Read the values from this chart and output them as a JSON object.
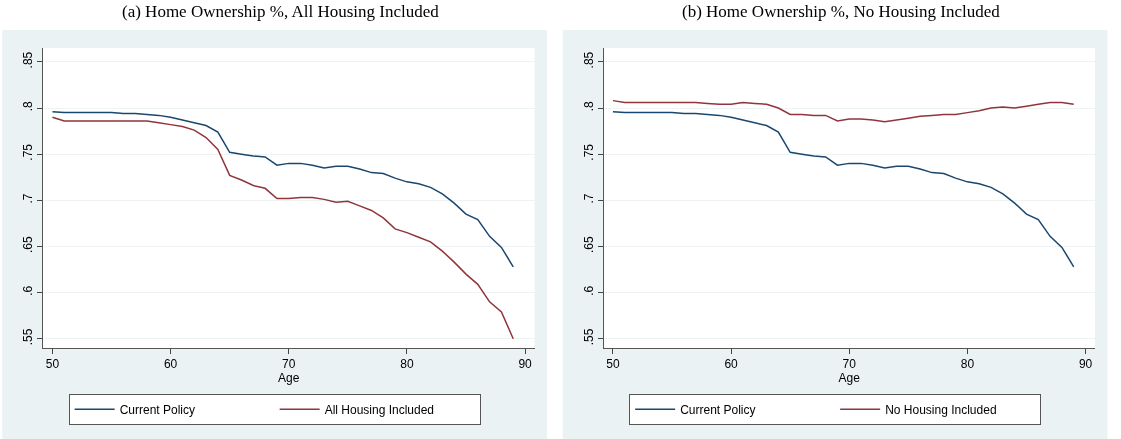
{
  "chart_data": [
    {
      "type": "line",
      "title": "(a) Home Ownership %, All Housing Included",
      "xlabel": "Age",
      "x": [
        50,
        51,
        52,
        53,
        54,
        55,
        56,
        57,
        58,
        59,
        60,
        61,
        62,
        63,
        64,
        65,
        66,
        67,
        68,
        69,
        70,
        71,
        72,
        73,
        74,
        75,
        76,
        77,
        78,
        79,
        80,
        81,
        82,
        83,
        84,
        85,
        86,
        87,
        88,
        89
      ],
      "series": [
        {
          "name": "Current Policy",
          "color": "#1a476f",
          "values": [
            0.796,
            0.795,
            0.795,
            0.795,
            0.795,
            0.795,
            0.794,
            0.794,
            0.793,
            0.792,
            0.79,
            0.787,
            0.784,
            0.781,
            0.774,
            0.752,
            0.75,
            0.748,
            0.747,
            0.738,
            0.74,
            0.74,
            0.738,
            0.735,
            0.737,
            0.737,
            0.734,
            0.73,
            0.729,
            0.724,
            0.72,
            0.718,
            0.714,
            0.707,
            0.697,
            0.685,
            0.679,
            0.661,
            0.649,
            0.628
          ]
        },
        {
          "name": "All Housing Included",
          "color": "#90353b",
          "values": [
            0.79,
            0.786,
            0.786,
            0.786,
            0.786,
            0.786,
            0.786,
            0.786,
            0.786,
            0.784,
            0.782,
            0.78,
            0.776,
            0.768,
            0.755,
            0.727,
            0.722,
            0.716,
            0.713,
            0.702,
            0.702,
            0.703,
            0.703,
            0.701,
            0.698,
            0.699,
            0.694,
            0.689,
            0.681,
            0.669,
            0.665,
            0.66,
            0.655,
            0.645,
            0.633,
            0.62,
            0.609,
            0.59,
            0.579,
            0.55
          ]
        }
      ],
      "xlim": [
        49.2,
        90.8
      ],
      "xticks": [
        50,
        60,
        70,
        80,
        90
      ],
      "ylim": [
        0.54,
        0.865
      ],
      "yticks": [
        {
          "value": 0.55,
          "label": ".55"
        },
        {
          "value": 0.6,
          "label": ".6"
        },
        {
          "value": 0.65,
          "label": ".65"
        },
        {
          "value": 0.7,
          "label": ".7"
        },
        {
          "value": 0.75,
          "label": ".75"
        },
        {
          "value": 0.8,
          "label": ".8"
        },
        {
          "value": 0.85,
          "label": ".85"
        }
      ],
      "grid": "y",
      "legend": "bottom",
      "marker": "none",
      "line_style": "solid"
    },
    {
      "type": "line",
      "title": "(b) Home Ownership %, No Housing Included",
      "xlabel": "Age",
      "x": [
        50,
        51,
        52,
        53,
        54,
        55,
        56,
        57,
        58,
        59,
        60,
        61,
        62,
        63,
        64,
        65,
        66,
        67,
        68,
        69,
        70,
        71,
        72,
        73,
        74,
        75,
        76,
        77,
        78,
        79,
        80,
        81,
        82,
        83,
        84,
        85,
        86,
        87,
        88,
        89
      ],
      "series": [
        {
          "name": "Current Policy",
          "color": "#1a476f",
          "values": [
            0.796,
            0.795,
            0.795,
            0.795,
            0.795,
            0.795,
            0.794,
            0.794,
            0.793,
            0.792,
            0.79,
            0.787,
            0.784,
            0.781,
            0.774,
            0.752,
            0.75,
            0.748,
            0.747,
            0.738,
            0.74,
            0.74,
            0.738,
            0.735,
            0.737,
            0.737,
            0.734,
            0.73,
            0.729,
            0.724,
            0.72,
            0.718,
            0.714,
            0.707,
            0.697,
            0.685,
            0.679,
            0.661,
            0.649,
            0.628
          ]
        },
        {
          "name": "No Housing Included",
          "color": "#90353b",
          "values": [
            0.808,
            0.806,
            0.806,
            0.806,
            0.806,
            0.806,
            0.806,
            0.806,
            0.805,
            0.804,
            0.804,
            0.806,
            0.805,
            0.804,
            0.8,
            0.793,
            0.793,
            0.792,
            0.792,
            0.786,
            0.788,
            0.788,
            0.787,
            0.785,
            0.787,
            0.789,
            0.791,
            0.792,
            0.793,
            0.793,
            0.795,
            0.797,
            0.8,
            0.801,
            0.8,
            0.802,
            0.804,
            0.806,
            0.806,
            0.804
          ]
        }
      ],
      "xlim": [
        49.2,
        90.8
      ],
      "xticks": [
        50,
        60,
        70,
        80,
        90
      ],
      "ylim": [
        0.54,
        0.865
      ],
      "yticks": [
        {
          "value": 0.55,
          "label": ".55"
        },
        {
          "value": 0.6,
          "label": ".6"
        },
        {
          "value": 0.65,
          "label": ".65"
        },
        {
          "value": 0.7,
          "label": ".7"
        },
        {
          "value": 0.75,
          "label": ".75"
        },
        {
          "value": 0.8,
          "label": ".8"
        },
        {
          "value": 0.85,
          "label": ".85"
        }
      ],
      "grid": "y",
      "legend": "bottom",
      "marker": "none",
      "line_style": "solid"
    }
  ]
}
